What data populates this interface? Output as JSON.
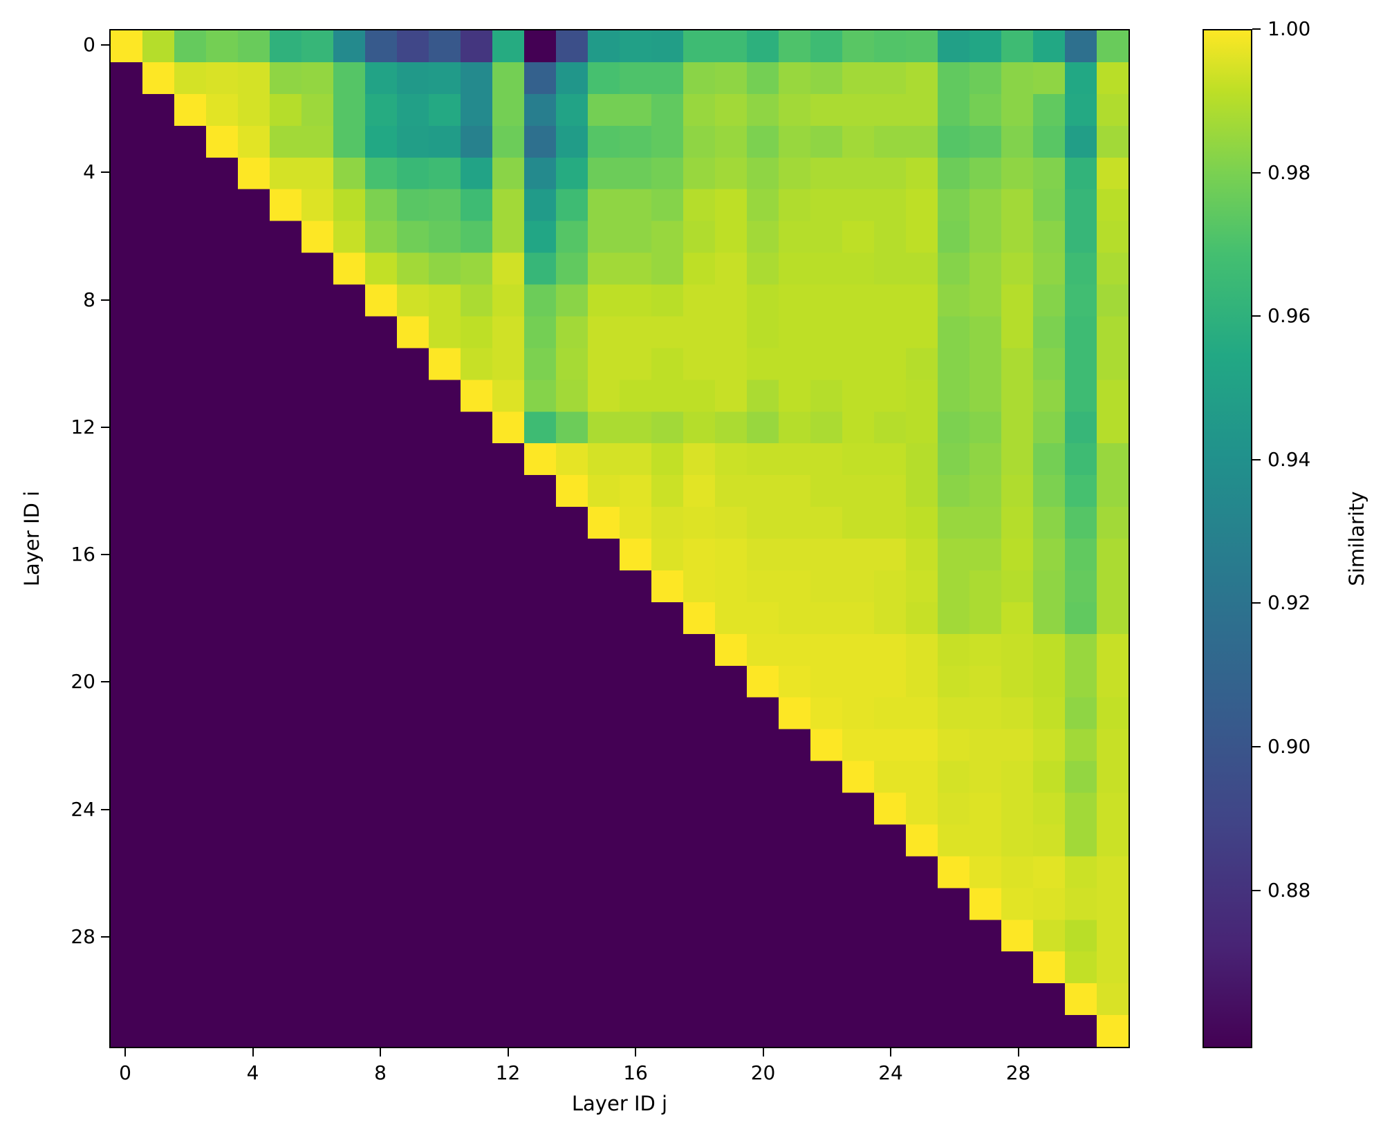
{
  "chart_data": {
    "type": "heatmap",
    "title": "",
    "xlabel": "Layer ID j",
    "ylabel": "Layer ID i",
    "colorbar_label": "Similarity",
    "colormap": "viridis",
    "vmin": 0.858,
    "vmax": 1.0,
    "n_rows": 32,
    "n_cols": 32,
    "x_ticks": [
      0,
      4,
      8,
      12,
      16,
      20,
      24,
      28
    ],
    "y_ticks": [
      0,
      4,
      8,
      12,
      16,
      20,
      24,
      28
    ],
    "colorbar_ticks": [
      "0.88",
      "0.90",
      "0.92",
      "0.94",
      "0.96",
      "0.98",
      "1.00"
    ],
    "colorbar_tick_values": [
      0.88,
      0.9,
      0.92,
      0.94,
      0.96,
      0.98,
      1.0
    ],
    "lower_triangle": "masked (filled with minimum value)",
    "grid": false,
    "rows": [
      [
        1.0,
        0.984,
        0.966,
        0.97,
        0.967,
        0.949,
        0.952,
        0.925,
        0.898,
        0.888,
        0.897,
        0.88,
        0.945,
        0.858,
        0.892,
        0.935,
        0.938,
        0.937,
        0.955,
        0.955,
        0.948,
        0.96,
        0.955,
        0.963,
        0.961,
        0.962,
        0.938,
        0.942,
        0.955,
        0.943,
        0.91,
        0.967
      ],
      [
        0.858,
        1.0,
        0.991,
        0.992,
        0.991,
        0.976,
        0.977,
        0.962,
        0.94,
        0.934,
        0.935,
        0.925,
        0.97,
        0.902,
        0.932,
        0.958,
        0.96,
        0.96,
        0.975,
        0.976,
        0.97,
        0.978,
        0.976,
        0.98,
        0.98,
        0.982,
        0.965,
        0.968,
        0.975,
        0.976,
        0.943,
        0.985
      ],
      [
        0.858,
        0.858,
        1.0,
        0.994,
        0.991,
        0.984,
        0.979,
        0.962,
        0.945,
        0.938,
        0.944,
        0.925,
        0.97,
        0.918,
        0.94,
        0.97,
        0.97,
        0.965,
        0.978,
        0.98,
        0.976,
        0.98,
        0.982,
        0.982,
        0.982,
        0.982,
        0.965,
        0.97,
        0.975,
        0.965,
        0.944,
        0.983
      ],
      [
        0.858,
        0.858,
        0.858,
        1.0,
        0.994,
        0.98,
        0.98,
        0.962,
        0.943,
        0.937,
        0.936,
        0.92,
        0.968,
        0.91,
        0.936,
        0.962,
        0.963,
        0.965,
        0.976,
        0.978,
        0.972,
        0.978,
        0.976,
        0.98,
        0.978,
        0.978,
        0.962,
        0.964,
        0.973,
        0.963,
        0.937,
        0.98
      ],
      [
        0.858,
        0.858,
        0.858,
        0.858,
        1.0,
        0.991,
        0.991,
        0.976,
        0.958,
        0.953,
        0.955,
        0.94,
        0.975,
        0.925,
        0.945,
        0.968,
        0.968,
        0.97,
        0.978,
        0.98,
        0.976,
        0.98,
        0.982,
        0.982,
        0.982,
        0.984,
        0.968,
        0.972,
        0.976,
        0.973,
        0.95,
        0.988
      ],
      [
        0.858,
        0.858,
        0.858,
        0.858,
        0.858,
        1.0,
        0.993,
        0.985,
        0.972,
        0.963,
        0.964,
        0.955,
        0.98,
        0.935,
        0.955,
        0.976,
        0.976,
        0.974,
        0.984,
        0.986,
        0.978,
        0.983,
        0.984,
        0.984,
        0.984,
        0.986,
        0.972,
        0.976,
        0.98,
        0.972,
        0.952,
        0.985
      ],
      [
        0.858,
        0.858,
        0.858,
        0.858,
        0.858,
        0.858,
        1.0,
        0.988,
        0.975,
        0.969,
        0.966,
        0.962,
        0.98,
        0.942,
        0.962,
        0.976,
        0.976,
        0.978,
        0.983,
        0.986,
        0.98,
        0.984,
        0.984,
        0.986,
        0.984,
        0.986,
        0.971,
        0.976,
        0.98,
        0.975,
        0.952,
        0.984
      ],
      [
        0.858,
        0.858,
        0.858,
        0.858,
        0.858,
        0.858,
        0.858,
        1.0,
        0.987,
        0.98,
        0.976,
        0.978,
        0.99,
        0.952,
        0.965,
        0.98,
        0.98,
        0.978,
        0.986,
        0.988,
        0.982,
        0.985,
        0.985,
        0.985,
        0.984,
        0.984,
        0.974,
        0.978,
        0.982,
        0.976,
        0.955,
        0.982
      ],
      [
        0.858,
        0.858,
        0.858,
        0.858,
        0.858,
        0.858,
        0.858,
        0.858,
        1.0,
        0.99,
        0.988,
        0.982,
        0.988,
        0.968,
        0.975,
        0.986,
        0.986,
        0.985,
        0.988,
        0.988,
        0.985,
        0.986,
        0.986,
        0.986,
        0.986,
        0.986,
        0.976,
        0.978,
        0.984,
        0.974,
        0.956,
        0.98
      ],
      [
        0.858,
        0.858,
        0.858,
        0.858,
        0.858,
        0.858,
        0.858,
        0.858,
        0.858,
        1.0,
        0.988,
        0.986,
        0.99,
        0.97,
        0.98,
        0.988,
        0.988,
        0.988,
        0.988,
        0.988,
        0.985,
        0.986,
        0.986,
        0.986,
        0.986,
        0.986,
        0.974,
        0.976,
        0.984,
        0.972,
        0.955,
        0.982
      ],
      [
        0.858,
        0.858,
        0.858,
        0.858,
        0.858,
        0.858,
        0.858,
        0.858,
        0.858,
        0.858,
        1.0,
        0.988,
        0.99,
        0.972,
        0.981,
        0.988,
        0.988,
        0.986,
        0.988,
        0.988,
        0.986,
        0.986,
        0.986,
        0.986,
        0.986,
        0.984,
        0.974,
        0.976,
        0.982,
        0.974,
        0.955,
        0.982
      ],
      [
        0.858,
        0.858,
        0.858,
        0.858,
        0.858,
        0.858,
        0.858,
        0.858,
        0.858,
        0.858,
        0.858,
        1.0,
        0.993,
        0.974,
        0.98,
        0.988,
        0.986,
        0.986,
        0.986,
        0.988,
        0.982,
        0.986,
        0.984,
        0.986,
        0.986,
        0.985,
        0.974,
        0.976,
        0.982,
        0.976,
        0.955,
        0.984
      ],
      [
        0.858,
        0.858,
        0.858,
        0.858,
        0.858,
        0.858,
        0.858,
        0.858,
        0.858,
        0.858,
        0.858,
        0.858,
        1.0,
        0.955,
        0.968,
        0.982,
        0.982,
        0.98,
        0.984,
        0.982,
        0.978,
        0.984,
        0.982,
        0.986,
        0.984,
        0.985,
        0.972,
        0.974,
        0.982,
        0.974,
        0.952,
        0.984
      ],
      [
        0.858,
        0.858,
        0.858,
        0.858,
        0.858,
        0.858,
        0.858,
        0.858,
        0.858,
        0.858,
        0.858,
        0.858,
        0.858,
        1.0,
        0.995,
        0.991,
        0.991,
        0.987,
        0.992,
        0.989,
        0.988,
        0.988,
        0.988,
        0.987,
        0.987,
        0.984,
        0.973,
        0.976,
        0.982,
        0.97,
        0.955,
        0.978
      ],
      [
        0.858,
        0.858,
        0.858,
        0.858,
        0.858,
        0.858,
        0.858,
        0.858,
        0.858,
        0.858,
        0.858,
        0.858,
        0.858,
        0.858,
        1.0,
        0.993,
        0.994,
        0.989,
        0.994,
        0.99,
        0.99,
        0.99,
        0.988,
        0.988,
        0.988,
        0.984,
        0.975,
        0.977,
        0.983,
        0.972,
        0.958,
        0.978
      ],
      [
        0.858,
        0.858,
        0.858,
        0.858,
        0.858,
        0.858,
        0.858,
        0.858,
        0.858,
        0.858,
        0.858,
        0.858,
        0.858,
        0.858,
        0.858,
        1.0,
        0.995,
        0.992,
        0.993,
        0.992,
        0.99,
        0.99,
        0.99,
        0.988,
        0.988,
        0.986,
        0.978,
        0.978,
        0.984,
        0.975,
        0.962,
        0.98
      ],
      [
        0.858,
        0.858,
        0.858,
        0.858,
        0.858,
        0.858,
        0.858,
        0.858,
        0.858,
        0.858,
        0.858,
        0.858,
        0.858,
        0.858,
        0.858,
        0.858,
        1.0,
        0.993,
        0.995,
        0.994,
        0.992,
        0.992,
        0.992,
        0.992,
        0.992,
        0.988,
        0.98,
        0.98,
        0.985,
        0.977,
        0.965,
        0.982
      ],
      [
        0.858,
        0.858,
        0.858,
        0.858,
        0.858,
        0.858,
        0.858,
        0.858,
        0.858,
        0.858,
        0.858,
        0.858,
        0.858,
        0.858,
        0.858,
        0.858,
        0.858,
        1.0,
        0.995,
        0.994,
        0.993,
        0.993,
        0.992,
        0.992,
        0.991,
        0.989,
        0.98,
        0.982,
        0.984,
        0.976,
        0.966,
        0.982
      ],
      [
        0.858,
        0.858,
        0.858,
        0.858,
        0.858,
        0.858,
        0.858,
        0.858,
        0.858,
        0.858,
        0.858,
        0.858,
        0.858,
        0.858,
        0.858,
        0.858,
        0.858,
        0.858,
        1.0,
        0.994,
        0.994,
        0.993,
        0.993,
        0.993,
        0.991,
        0.988,
        0.98,
        0.982,
        0.987,
        0.976,
        0.965,
        0.982
      ],
      [
        0.858,
        0.858,
        0.858,
        0.858,
        0.858,
        0.858,
        0.858,
        0.858,
        0.858,
        0.858,
        0.858,
        0.858,
        0.858,
        0.858,
        0.858,
        0.858,
        0.858,
        0.858,
        0.858,
        1.0,
        0.995,
        0.995,
        0.995,
        0.995,
        0.995,
        0.993,
        0.988,
        0.989,
        0.988,
        0.986,
        0.978,
        0.988
      ],
      [
        0.858,
        0.858,
        0.858,
        0.858,
        0.858,
        0.858,
        0.858,
        0.858,
        0.858,
        0.858,
        0.858,
        0.858,
        0.858,
        0.858,
        0.858,
        0.858,
        0.858,
        0.858,
        0.858,
        0.858,
        1.0,
        0.996,
        0.995,
        0.995,
        0.995,
        0.993,
        0.989,
        0.99,
        0.988,
        0.986,
        0.978,
        0.988
      ],
      [
        0.858,
        0.858,
        0.858,
        0.858,
        0.858,
        0.858,
        0.858,
        0.858,
        0.858,
        0.858,
        0.858,
        0.858,
        0.858,
        0.858,
        0.858,
        0.858,
        0.858,
        0.858,
        0.858,
        0.858,
        0.858,
        1.0,
        0.996,
        0.995,
        0.994,
        0.994,
        0.991,
        0.991,
        0.99,
        0.987,
        0.976,
        0.987
      ],
      [
        0.858,
        0.858,
        0.858,
        0.858,
        0.858,
        0.858,
        0.858,
        0.858,
        0.858,
        0.858,
        0.858,
        0.858,
        0.858,
        0.858,
        0.858,
        0.858,
        0.858,
        0.858,
        0.858,
        0.858,
        0.858,
        0.858,
        1.0,
        0.996,
        0.996,
        0.996,
        0.993,
        0.992,
        0.992,
        0.989,
        0.98,
        0.988
      ],
      [
        0.858,
        0.858,
        0.858,
        0.858,
        0.858,
        0.858,
        0.858,
        0.858,
        0.858,
        0.858,
        0.858,
        0.858,
        0.858,
        0.858,
        0.858,
        0.858,
        0.858,
        0.858,
        0.858,
        0.858,
        0.858,
        0.858,
        0.858,
        1.0,
        0.995,
        0.995,
        0.991,
        0.992,
        0.991,
        0.987,
        0.977,
        0.988
      ],
      [
        0.858,
        0.858,
        0.858,
        0.858,
        0.858,
        0.858,
        0.858,
        0.858,
        0.858,
        0.858,
        0.858,
        0.858,
        0.858,
        0.858,
        0.858,
        0.858,
        0.858,
        0.858,
        0.858,
        0.858,
        0.858,
        0.858,
        0.858,
        0.858,
        1.0,
        0.995,
        0.992,
        0.993,
        0.991,
        0.989,
        0.98,
        0.989
      ],
      [
        0.858,
        0.858,
        0.858,
        0.858,
        0.858,
        0.858,
        0.858,
        0.858,
        0.858,
        0.858,
        0.858,
        0.858,
        0.858,
        0.858,
        0.858,
        0.858,
        0.858,
        0.858,
        0.858,
        0.858,
        0.858,
        0.858,
        0.858,
        0.858,
        0.858,
        1.0,
        0.993,
        0.993,
        0.991,
        0.99,
        0.98,
        0.989
      ],
      [
        0.858,
        0.858,
        0.858,
        0.858,
        0.858,
        0.858,
        0.858,
        0.858,
        0.858,
        0.858,
        0.858,
        0.858,
        0.858,
        0.858,
        0.858,
        0.858,
        0.858,
        0.858,
        0.858,
        0.858,
        0.858,
        0.858,
        0.858,
        0.858,
        0.858,
        0.858,
        1.0,
        0.995,
        0.993,
        0.994,
        0.989,
        0.991
      ],
      [
        0.858,
        0.858,
        0.858,
        0.858,
        0.858,
        0.858,
        0.858,
        0.858,
        0.858,
        0.858,
        0.858,
        0.858,
        0.858,
        0.858,
        0.858,
        0.858,
        0.858,
        0.858,
        0.858,
        0.858,
        0.858,
        0.858,
        0.858,
        0.858,
        0.858,
        0.858,
        0.858,
        1.0,
        0.994,
        0.993,
        0.99,
        0.991
      ],
      [
        0.858,
        0.858,
        0.858,
        0.858,
        0.858,
        0.858,
        0.858,
        0.858,
        0.858,
        0.858,
        0.858,
        0.858,
        0.858,
        0.858,
        0.858,
        0.858,
        0.858,
        0.858,
        0.858,
        0.858,
        0.858,
        0.858,
        0.858,
        0.858,
        0.858,
        0.858,
        0.858,
        0.858,
        1.0,
        0.99,
        0.985,
        0.991
      ],
      [
        0.858,
        0.858,
        0.858,
        0.858,
        0.858,
        0.858,
        0.858,
        0.858,
        0.858,
        0.858,
        0.858,
        0.858,
        0.858,
        0.858,
        0.858,
        0.858,
        0.858,
        0.858,
        0.858,
        0.858,
        0.858,
        0.858,
        0.858,
        0.858,
        0.858,
        0.858,
        0.858,
        0.858,
        0.858,
        1.0,
        0.987,
        0.991
      ],
      [
        0.858,
        0.858,
        0.858,
        0.858,
        0.858,
        0.858,
        0.858,
        0.858,
        0.858,
        0.858,
        0.858,
        0.858,
        0.858,
        0.858,
        0.858,
        0.858,
        0.858,
        0.858,
        0.858,
        0.858,
        0.858,
        0.858,
        0.858,
        0.858,
        0.858,
        0.858,
        0.858,
        0.858,
        0.858,
        0.858,
        1.0,
        0.992
      ],
      [
        0.858,
        0.858,
        0.858,
        0.858,
        0.858,
        0.858,
        0.858,
        0.858,
        0.858,
        0.858,
        0.858,
        0.858,
        0.858,
        0.858,
        0.858,
        0.858,
        0.858,
        0.858,
        0.858,
        0.858,
        0.858,
        0.858,
        0.858,
        0.858,
        0.858,
        0.858,
        0.858,
        0.858,
        0.858,
        0.858,
        0.858,
        1.0
      ]
    ]
  },
  "axes": {
    "x_tick_labels": [
      "0",
      "4",
      "8",
      "12",
      "16",
      "20",
      "24",
      "28"
    ],
    "y_tick_labels": [
      "0",
      "4",
      "8",
      "12",
      "16",
      "20",
      "24",
      "28"
    ],
    "xlabel": "Layer ID j",
    "ylabel": "Layer ID i"
  },
  "colorbar": {
    "label": "Similarity",
    "tick_labels": [
      "1.00",
      "0.98",
      "0.96",
      "0.94",
      "0.92",
      "0.90",
      "0.88"
    ]
  },
  "colors": {
    "viridis_min": "#440154",
    "viridis_max": "#fde725",
    "axis": "#000000",
    "background": "#ffffff"
  }
}
